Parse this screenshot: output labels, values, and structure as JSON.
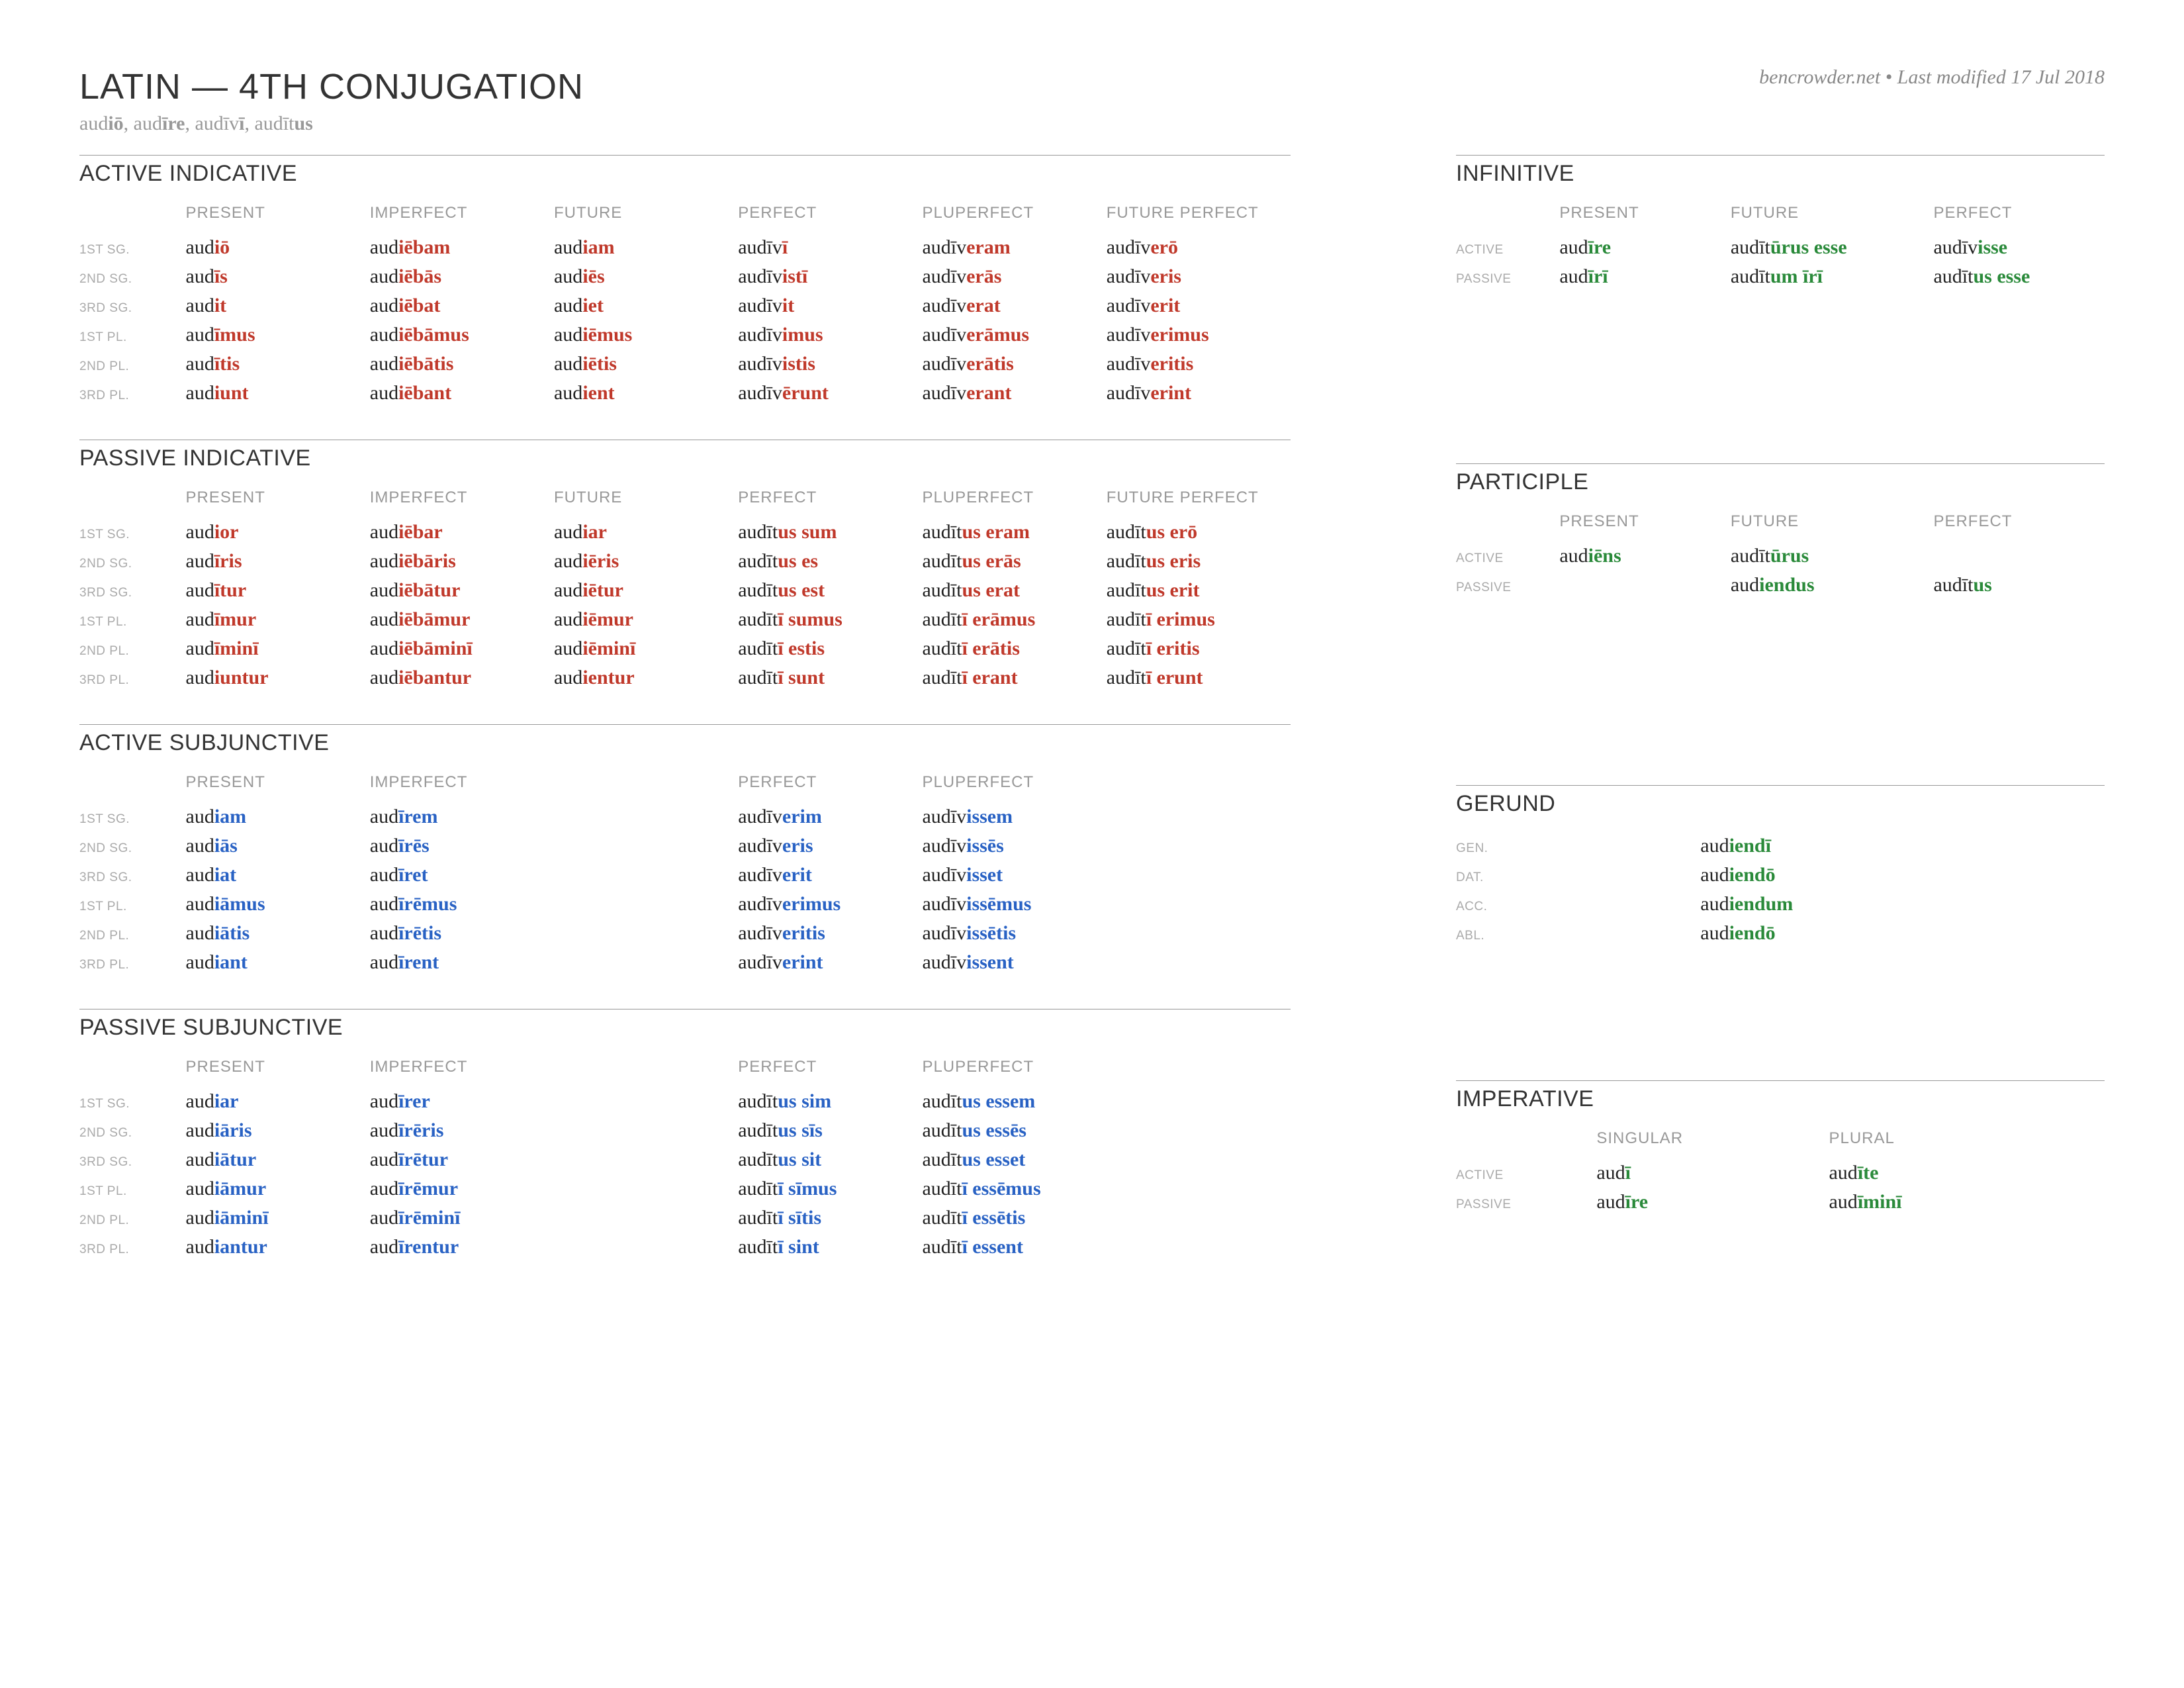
{
  "title": "LATIN — 4TH CONJUGATION",
  "meta": "bencrowder.net • Last modified 17 Jul 2018",
  "principal_parts": [
    {
      "stem": "aud",
      "end": "iō"
    },
    {
      "stem": "aud",
      "end": "īre"
    },
    {
      "stem": "audīv",
      "end": "ī"
    },
    {
      "stem": "audīt",
      "end": "us"
    }
  ],
  "colors": {
    "ind": "#c0392b",
    "subj": "#2962c4",
    "other": "#2a8a3a"
  },
  "row_labels_person": [
    "1ST SG.",
    "2ND SG.",
    "3RD SG.",
    "1ST PL.",
    "2ND PL.",
    "3RD PL."
  ],
  "voice_labels": [
    "ACTIVE",
    "PASSIVE"
  ],
  "case_labels": [
    "GEN.",
    "DAT.",
    "ACC.",
    "ABL."
  ],
  "tense_headers6": [
    "PRESENT",
    "IMPERFECT",
    "FUTURE",
    "PERFECT",
    "PLUPERFECT",
    "FUTURE PERFECT"
  ],
  "tense_headers4": [
    "PRESENT",
    "IMPERFECT",
    "PERFECT",
    "PLUPERFECT"
  ],
  "inf_headers": [
    "PRESENT",
    "FUTURE",
    "PERFECT"
  ],
  "imp_headers": [
    "SINGULAR",
    "PLURAL"
  ],
  "sections": {
    "active_indicative": {
      "title": "ACTIVE INDICATIVE",
      "rows": [
        [
          [
            "aud",
            "iō"
          ],
          [
            "aud",
            "iēbam"
          ],
          [
            "aud",
            "iam"
          ],
          [
            "audīv",
            "ī"
          ],
          [
            "audīv",
            "eram"
          ],
          [
            "audīv",
            "erō"
          ]
        ],
        [
          [
            "aud",
            "īs"
          ],
          [
            "aud",
            "iēbās"
          ],
          [
            "aud",
            "iēs"
          ],
          [
            "audīv",
            "istī"
          ],
          [
            "audīv",
            "erās"
          ],
          [
            "audīv",
            "eris"
          ]
        ],
        [
          [
            "aud",
            "it"
          ],
          [
            "aud",
            "iēbat"
          ],
          [
            "aud",
            "iet"
          ],
          [
            "audīv",
            "it"
          ],
          [
            "audīv",
            "erat"
          ],
          [
            "audīv",
            "erit"
          ]
        ],
        [
          [
            "aud",
            "īmus"
          ],
          [
            "aud",
            "iēbāmus"
          ],
          [
            "aud",
            "iēmus"
          ],
          [
            "audīv",
            "imus"
          ],
          [
            "audīv",
            "erāmus"
          ],
          [
            "audīv",
            "erimus"
          ]
        ],
        [
          [
            "aud",
            "ītis"
          ],
          [
            "aud",
            "iēbātis"
          ],
          [
            "aud",
            "iētis"
          ],
          [
            "audīv",
            "istis"
          ],
          [
            "audīv",
            "erātis"
          ],
          [
            "audīv",
            "eritis"
          ]
        ],
        [
          [
            "aud",
            "iunt"
          ],
          [
            "aud",
            "iēbant"
          ],
          [
            "aud",
            "ient"
          ],
          [
            "audīv",
            "ērunt"
          ],
          [
            "audīv",
            "erant"
          ],
          [
            "audīv",
            "erint"
          ]
        ]
      ]
    },
    "passive_indicative": {
      "title": "PASSIVE INDICATIVE",
      "rows": [
        [
          [
            "aud",
            "ior"
          ],
          [
            "aud",
            "iēbar"
          ],
          [
            "aud",
            "iar"
          ],
          [
            "audīt",
            "us sum"
          ],
          [
            "audīt",
            "us eram"
          ],
          [
            "audīt",
            "us erō"
          ]
        ],
        [
          [
            "aud",
            "īris"
          ],
          [
            "aud",
            "iēbāris"
          ],
          [
            "aud",
            "iēris"
          ],
          [
            "audīt",
            "us es"
          ],
          [
            "audīt",
            "us erās"
          ],
          [
            "audīt",
            "us eris"
          ]
        ],
        [
          [
            "aud",
            "ītur"
          ],
          [
            "aud",
            "iēbātur"
          ],
          [
            "aud",
            "iētur"
          ],
          [
            "audīt",
            "us est"
          ],
          [
            "audīt",
            "us erat"
          ],
          [
            "audīt",
            "us erit"
          ]
        ],
        [
          [
            "aud",
            "īmur"
          ],
          [
            "aud",
            "iēbāmur"
          ],
          [
            "aud",
            "iēmur"
          ],
          [
            "audīt",
            "ī sumus"
          ],
          [
            "audīt",
            "ī erāmus"
          ],
          [
            "audīt",
            "ī erimus"
          ]
        ],
        [
          [
            "aud",
            "īminī"
          ],
          [
            "aud",
            "iēbāminī"
          ],
          [
            "aud",
            "iēminī"
          ],
          [
            "audīt",
            "ī estis"
          ],
          [
            "audīt",
            "ī erātis"
          ],
          [
            "audīt",
            "ī eritis"
          ]
        ],
        [
          [
            "aud",
            "iuntur"
          ],
          [
            "aud",
            "iēbantur"
          ],
          [
            "aud",
            "ientur"
          ],
          [
            "audīt",
            "ī sunt"
          ],
          [
            "audīt",
            "ī erant"
          ],
          [
            "audīt",
            "ī erunt"
          ]
        ]
      ]
    },
    "active_subjunctive": {
      "title": "ACTIVE SUBJUNCTIVE",
      "rows": [
        [
          [
            "aud",
            "iam"
          ],
          [
            "aud",
            "īrem"
          ],
          null,
          [
            "audīv",
            "erim"
          ],
          [
            "audīv",
            "issem"
          ],
          null
        ],
        [
          [
            "aud",
            "iās"
          ],
          [
            "aud",
            "īrēs"
          ],
          null,
          [
            "audīv",
            "eris"
          ],
          [
            "audīv",
            "issēs"
          ],
          null
        ],
        [
          [
            "aud",
            "iat"
          ],
          [
            "aud",
            "īret"
          ],
          null,
          [
            "audīv",
            "erit"
          ],
          [
            "audīv",
            "isset"
          ],
          null
        ],
        [
          [
            "aud",
            "iāmus"
          ],
          [
            "aud",
            "īrēmus"
          ],
          null,
          [
            "audīv",
            "erimus"
          ],
          [
            "audīv",
            "issēmus"
          ],
          null
        ],
        [
          [
            "aud",
            "iātis"
          ],
          [
            "aud",
            "īrētis"
          ],
          null,
          [
            "audīv",
            "eritis"
          ],
          [
            "audīv",
            "issētis"
          ],
          null
        ],
        [
          [
            "aud",
            "iant"
          ],
          [
            "aud",
            "īrent"
          ],
          null,
          [
            "audīv",
            "erint"
          ],
          [
            "audīv",
            "issent"
          ],
          null
        ]
      ]
    },
    "passive_subjunctive": {
      "title": "PASSIVE SUBJUNCTIVE",
      "rows": [
        [
          [
            "aud",
            "iar"
          ],
          [
            "aud",
            "īrer"
          ],
          null,
          [
            "audīt",
            "us sim"
          ],
          [
            "audīt",
            "us essem"
          ],
          null
        ],
        [
          [
            "aud",
            "iāris"
          ],
          [
            "aud",
            "īrēris"
          ],
          null,
          [
            "audīt",
            "us sīs"
          ],
          [
            "audīt",
            "us essēs"
          ],
          null
        ],
        [
          [
            "aud",
            "iātur"
          ],
          [
            "aud",
            "īrētur"
          ],
          null,
          [
            "audīt",
            "us sit"
          ],
          [
            "audīt",
            "us esset"
          ],
          null
        ],
        [
          [
            "aud",
            "iāmur"
          ],
          [
            "aud",
            "īrēmur"
          ],
          null,
          [
            "audīt",
            "ī sīmus"
          ],
          [
            "audīt",
            "ī essēmus"
          ],
          null
        ],
        [
          [
            "aud",
            "iāminī"
          ],
          [
            "aud",
            "īrēminī"
          ],
          null,
          [
            "audīt",
            "ī sītis"
          ],
          [
            "audīt",
            "ī essētis"
          ],
          null
        ],
        [
          [
            "aud",
            "iantur"
          ],
          [
            "aud",
            "īrentur"
          ],
          null,
          [
            "audīt",
            "ī sint"
          ],
          [
            "audīt",
            "ī essent"
          ],
          null
        ]
      ]
    },
    "infinitive": {
      "title": "INFINITIVE",
      "rows": [
        [
          [
            "aud",
            "īre"
          ],
          [
            "audīt",
            "ūrus esse"
          ],
          [
            "audīv",
            "isse"
          ]
        ],
        [
          [
            "aud",
            "īrī"
          ],
          [
            "audīt",
            "um īrī"
          ],
          [
            "audīt",
            "us esse"
          ]
        ]
      ]
    },
    "participle": {
      "title": "PARTICIPLE",
      "rows": [
        [
          [
            "aud",
            "iēns"
          ],
          [
            "audīt",
            "ūrus"
          ],
          null
        ],
        [
          null,
          [
            "aud",
            "iendus"
          ],
          [
            "audīt",
            "us"
          ]
        ]
      ]
    },
    "gerund": {
      "title": "GERUND",
      "rows": [
        [
          [
            "aud",
            "iendī"
          ]
        ],
        [
          [
            "aud",
            "iendō"
          ]
        ],
        [
          [
            "aud",
            "iendum"
          ]
        ],
        [
          [
            "aud",
            "iendō"
          ]
        ]
      ]
    },
    "imperative": {
      "title": "IMPERATIVE",
      "rows": [
        [
          [
            "aud",
            "ī"
          ],
          [
            "aud",
            "īte"
          ]
        ],
        [
          [
            "aud",
            "īre"
          ],
          [
            "aud",
            "īminī"
          ]
        ]
      ]
    }
  }
}
